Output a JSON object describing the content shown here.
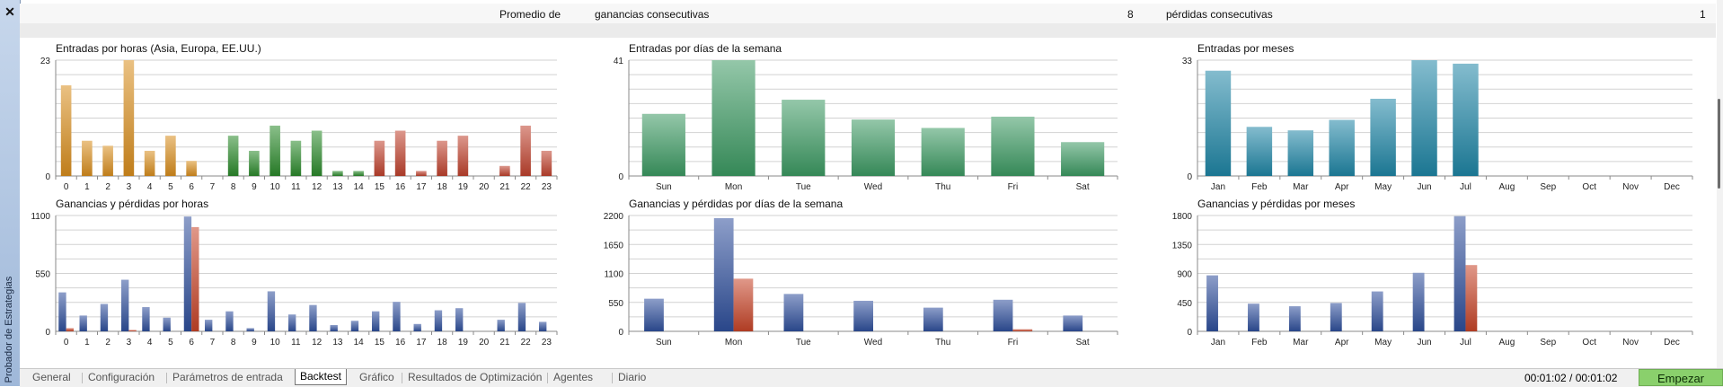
{
  "app": {
    "side_label": "Probador de Estrategias",
    "close_glyph": "✕"
  },
  "summary_row": {
    "prefix": "Promedio de",
    "wins_label": "ganancias consecutivas",
    "wins_value": "8",
    "losses_label": "pérdidas consecutivas",
    "losses_value": "1"
  },
  "colors": {
    "asia": "#d98e1e",
    "europe": "#2b8a2b",
    "usa": "#c0422e",
    "weekday_bar": "#3c9a63",
    "month_bar": "#1f86a6",
    "profit": "#2f4f9c",
    "loss": "#c74428",
    "start_button": "#8ad06c"
  },
  "chart_data": [
    {
      "type": "bar",
      "title": "Entradas por horas (Asia, Europa, EE.UU.)",
      "categories": [
        "0",
        "1",
        "2",
        "3",
        "4",
        "5",
        "6",
        "7",
        "8",
        "9",
        "10",
        "11",
        "12",
        "13",
        "14",
        "15",
        "16",
        "17",
        "18",
        "19",
        "20",
        "21",
        "22",
        "23"
      ],
      "values": [
        18,
        7,
        6,
        23,
        5,
        8,
        3,
        0,
        8,
        5,
        10,
        7,
        9,
        1,
        1,
        7,
        9,
        1,
        7,
        8,
        0,
        2,
        10,
        5
      ],
      "bar_colors": [
        "#d98e1e",
        "#d98e1e",
        "#d98e1e",
        "#d98e1e",
        "#d98e1e",
        "#d98e1e",
        "#d98e1e",
        "#2b8a2b",
        "#2b8a2b",
        "#2b8a2b",
        "#2b8a2b",
        "#2b8a2b",
        "#2b8a2b",
        "#2b8a2b",
        "#2b8a2b",
        "#c0422e",
        "#c0422e",
        "#c0422e",
        "#c0422e",
        "#c0422e",
        "#c0422e",
        "#c0422e",
        "#c0422e",
        "#c0422e"
      ],
      "ylim": [
        0,
        23
      ],
      "yticks": [
        "0",
        "23"
      ],
      "grid": true
    },
    {
      "type": "bar",
      "title": "Entradas por días de la semana",
      "categories": [
        "Sun",
        "Mon",
        "Tue",
        "Wed",
        "Thu",
        "Fri",
        "Sat"
      ],
      "values": [
        22,
        41,
        27,
        20,
        17,
        21,
        12
      ],
      "bar_colors": [
        "#3c9a63",
        "#3c9a63",
        "#3c9a63",
        "#3c9a63",
        "#3c9a63",
        "#3c9a63",
        "#3c9a63"
      ],
      "ylim": [
        0,
        41
      ],
      "yticks": [
        "0",
        "41"
      ],
      "grid": true
    },
    {
      "type": "bar",
      "title": "Entradas por meses",
      "categories": [
        "Jan",
        "Feb",
        "Mar",
        "Apr",
        "May",
        "Jun",
        "Jul",
        "Aug",
        "Sep",
        "Oct",
        "Nov",
        "Dec"
      ],
      "values": [
        30,
        14,
        13,
        16,
        22,
        33,
        32,
        0,
        0,
        0,
        0,
        0
      ],
      "bar_colors": [
        "#1f86a6",
        "#1f86a6",
        "#1f86a6",
        "#1f86a6",
        "#1f86a6",
        "#1f86a6",
        "#1f86a6",
        "#1f86a6",
        "#1f86a6",
        "#1f86a6",
        "#1f86a6",
        "#1f86a6"
      ],
      "ylim": [
        0,
        33
      ],
      "yticks": [
        "0",
        "33"
      ],
      "grid": true
    },
    {
      "type": "bar",
      "title": "Ganancias y pérdidas por horas",
      "categories": [
        "0",
        "1",
        "2",
        "3",
        "4",
        "5",
        "6",
        "7",
        "8",
        "9",
        "10",
        "11",
        "12",
        "13",
        "14",
        "15",
        "16",
        "17",
        "18",
        "19",
        "20",
        "21",
        "22",
        "23"
      ],
      "series": [
        {
          "values": [
            370,
            150,
            260,
            490,
            230,
            130,
            1090,
            110,
            190,
            30,
            380,
            160,
            250,
            60,
            100,
            190,
            280,
            70,
            200,
            220,
            0,
            110,
            270,
            90
          ]
        },
        {
          "values": [
            30,
            0,
            0,
            10,
            0,
            0,
            990,
            0,
            0,
            0,
            0,
            0,
            0,
            0,
            0,
            0,
            0,
            0,
            0,
            0,
            0,
            0,
            0,
            0
          ]
        }
      ],
      "ylim": [
        0,
        1100
      ],
      "yticks": [
        "0",
        "550",
        "1100"
      ],
      "grid": true
    },
    {
      "type": "bar",
      "title": "Ganancias y pérdidas por días de la semana",
      "categories": [
        "Sun",
        "Mon",
        "Tue",
        "Wed",
        "Thu",
        "Fri",
        "Sat"
      ],
      "series": [
        {
          "values": [
            620,
            2150,
            710,
            580,
            450,
            600,
            300
          ]
        },
        {
          "values": [
            0,
            1000,
            0,
            0,
            0,
            40,
            0
          ]
        }
      ],
      "ylim": [
        0,
        2200
      ],
      "yticks": [
        "0",
        "550",
        "1100",
        "1650",
        "2200"
      ],
      "grid": true
    },
    {
      "type": "bar",
      "title": "Ganancias y pérdidas por meses",
      "categories": [
        "Jan",
        "Feb",
        "Mar",
        "Apr",
        "May",
        "Jun",
        "Jul",
        "Aug",
        "Sep",
        "Oct",
        "Nov",
        "Dec"
      ],
      "series": [
        {
          "values": [
            870,
            430,
            390,
            440,
            620,
            910,
            1790,
            0,
            0,
            0,
            0,
            0
          ]
        },
        {
          "values": [
            0,
            0,
            0,
            0,
            0,
            0,
            1030,
            0,
            0,
            0,
            0,
            0
          ]
        }
      ],
      "ylim": [
        0,
        1800
      ],
      "yticks": [
        "0",
        "450",
        "900",
        "1350",
        "1800"
      ],
      "grid": true
    }
  ],
  "tabs": [
    {
      "label": "General",
      "active": false
    },
    {
      "label": "Configuración",
      "active": false
    },
    {
      "label": "Parámetros de entrada",
      "active": false
    },
    {
      "label": "Backtest",
      "active": true
    },
    {
      "label": "Gráfico",
      "active": false
    },
    {
      "label": "Resultados de Optimización",
      "active": false
    },
    {
      "label": "Agentes",
      "active": false
    },
    {
      "label": "Diario",
      "active": false
    }
  ],
  "status": {
    "timer": "00:01:02 / 00:01:02",
    "start_label": "Empezar"
  }
}
